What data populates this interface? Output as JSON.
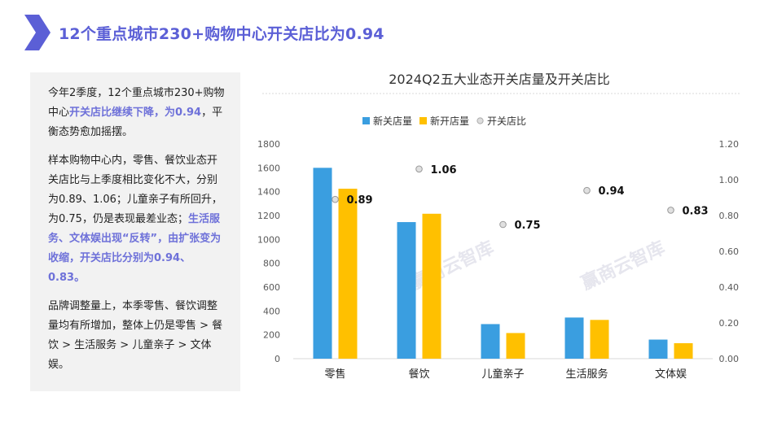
{
  "page_title": "12个重点城市230+购物中心开关店比为0.94",
  "text_box": {
    "paragraphs": [
      [
        {
          "text": "今年2季度，12个重点城市230+购物中心",
          "hl": false
        },
        {
          "text": "开关店比继续下降，为0.94",
          "hl": true
        },
        {
          "text": "，平衡态势愈加摇摆。",
          "hl": false
        }
      ],
      [
        {
          "text": "样本购物中心内，零售、餐饮业态开关店比与上季度相比变化不大，分别为0.89、1.06；儿童亲子有所回升，为0.75，仍是表现最差业态；",
          "hl": false
        },
        {
          "text": "生活服务、文体娱出现“反转”，由扩张变为收缩，开关店比分别为0.94、0.83。",
          "hl": true
        }
      ],
      [
        {
          "text": "品牌调整量上，本季零售、餐饮调整量均有所增加，整体上仍是零售 > 餐饮 > 生活服务 > 儿童亲子 > 文体娱。",
          "hl": false
        }
      ]
    ]
  },
  "watermark": "赢商云智库",
  "colors": {
    "title": "#5b5fd6",
    "highlight": "#6e71d9",
    "close_bar": "#3a9ee0",
    "open_bar": "#ffc000",
    "ratio_marker": "#c8c8c8",
    "panel_bg": "#f2f2f2"
  },
  "chart_data": {
    "type": "bar",
    "title": "2024Q2五大业态开关店量及开关店比",
    "categories": [
      "零售",
      "餐饮",
      "儿童亲子",
      "生活服务",
      "文体娱"
    ],
    "series": [
      {
        "name": "新关店量",
        "type": "bar",
        "axis": "left",
        "values": [
          1600,
          1145,
          290,
          345,
          160
        ]
      },
      {
        "name": "新开店量",
        "type": "bar",
        "axis": "left",
        "values": [
          1425,
          1215,
          215,
          325,
          130
        ]
      },
      {
        "name": "开关店比",
        "type": "scatter",
        "axis": "right",
        "values": [
          0.89,
          1.06,
          0.75,
          0.94,
          0.83
        ],
        "labels": [
          "0.89",
          "1.06",
          "0.75",
          "0.94",
          "0.83"
        ]
      }
    ],
    "y_left": {
      "min": 0,
      "max": 1800,
      "ticks": [
        "0",
        "200",
        "400",
        "600",
        "800",
        "1000",
        "1200",
        "1400",
        "1600",
        "1800"
      ]
    },
    "y_right": {
      "min": 0,
      "max": 1.2,
      "ticks": [
        "0.00",
        "0.20",
        "0.40",
        "0.60",
        "0.80",
        "1.00",
        "1.20"
      ]
    },
    "legend_position": "top",
    "grid": false
  }
}
